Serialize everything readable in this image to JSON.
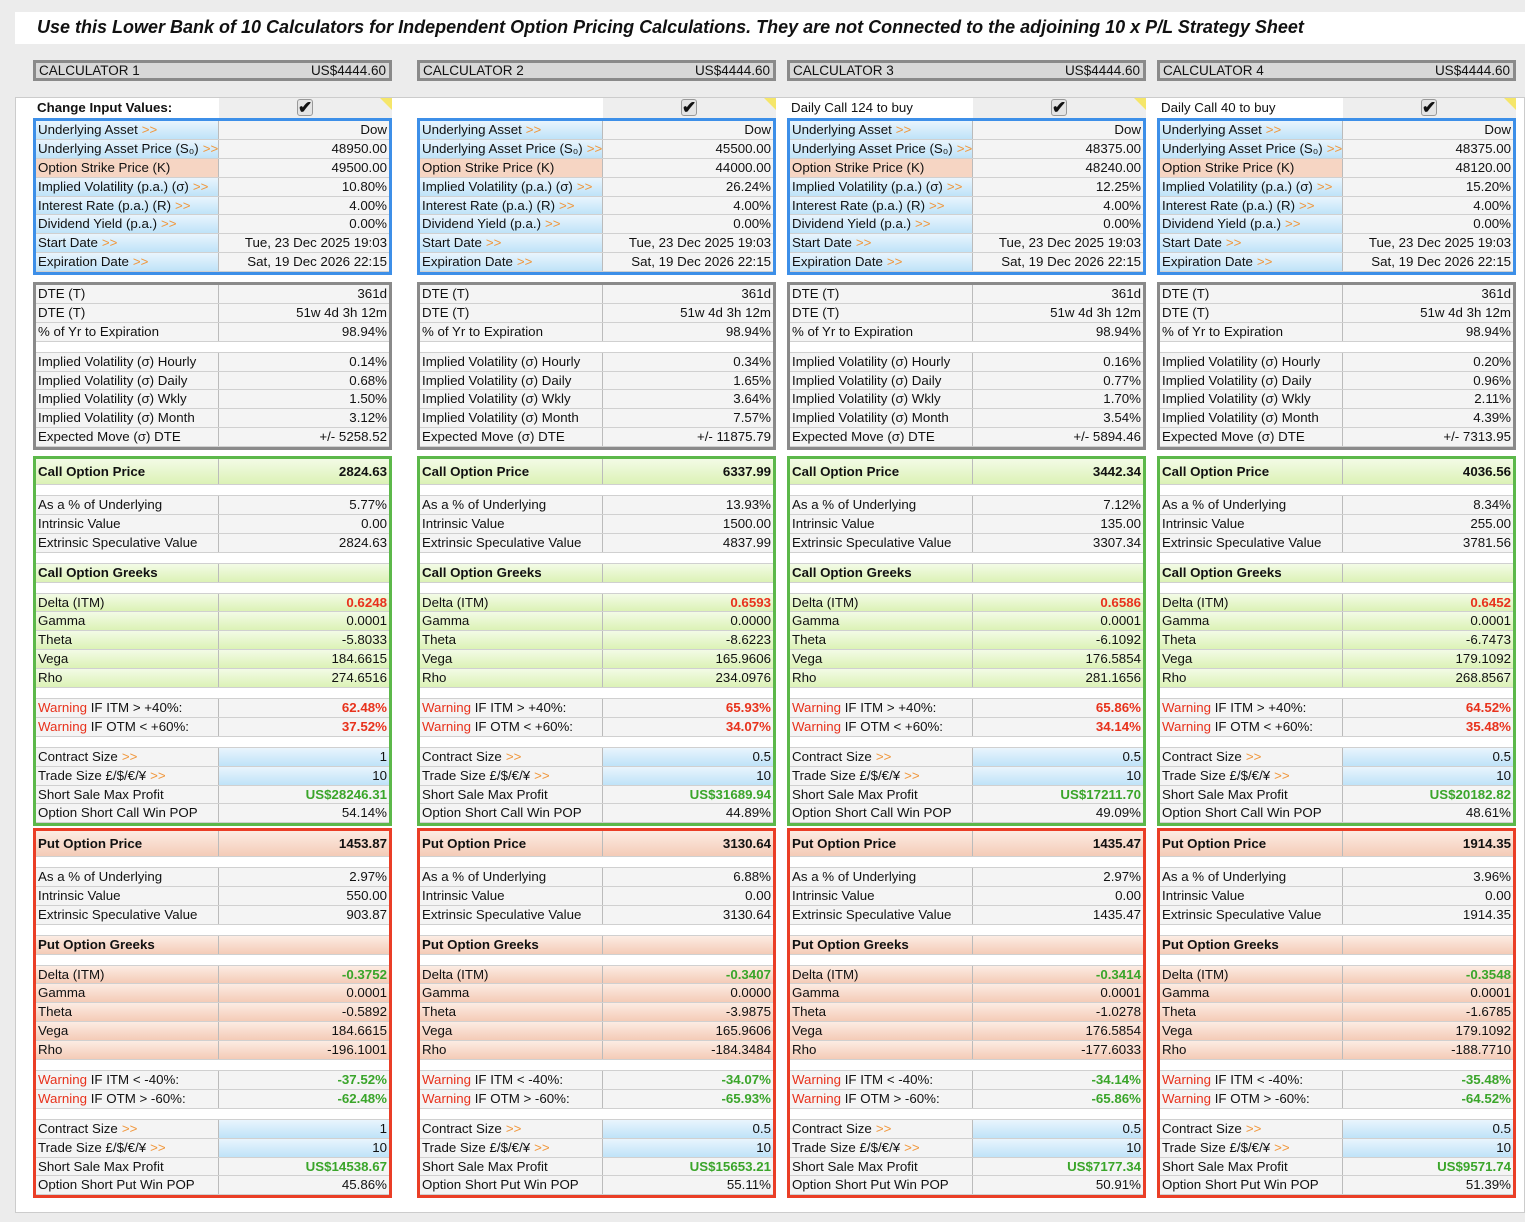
{
  "title": "Use this Lower Bank of 10 Calculators for Independent Option Pricing Calculations. They are not Connected to the adjoining 10 x P/L Strategy Sheet",
  "colors": {
    "input_border": "#3d8fe8",
    "stats_border": "#8a8a8a",
    "call_border": "#5cb84a",
    "put_border": "#ea3e26",
    "warning": "#e8321c",
    "positive": "#3aa52a",
    "arrow": "#f0963a"
  },
  "icons": {
    "checkbox": "checkmark-icon",
    "note": "cell-comment-indicator-icon"
  },
  "labels": {
    "arrow": ">>",
    "checkmark": "✔",
    "inputs": {
      "asset": "Underlying Asset",
      "price": "Underlying Asset Price (S₀)",
      "strike": "Option Strike Price (K)",
      "iv": "Implied Volatility (p.a.) (σ)",
      "rate": "Interest Rate (p.a.) (R)",
      "div": "Dividend Yield (p.a.)",
      "start": "Start Date",
      "expiry": "Expiration Date"
    },
    "stats": {
      "dte_days": "DTE (T)",
      "dte_full": "DTE (T)",
      "pct_year": "% of Yr to Expiration",
      "iv_hourly": "Implied Volatility (σ) Hourly",
      "iv_daily": "Implied Volatility (σ) Daily",
      "iv_weekly": "Implied Volatility (σ) Wkly",
      "iv_monthly": "Implied Volatility (σ) Month",
      "expected_move": "Expected Move (σ) DTE"
    },
    "call": {
      "price": "Call Option Price",
      "pct": "As a % of Underlying",
      "intrinsic": "Intrinsic Value",
      "extrinsic": "Extrinsic Speculative Value",
      "greeks": "Call Option Greeks",
      "delta": "Delta (ITM)",
      "gamma": "Gamma",
      "theta": "Theta",
      "vega": "Vega",
      "rho": "Rho",
      "warn_word": "Warning",
      "warn_itm": " IF ITM > +40%:",
      "warn_otm": " IF OTM < +60%:",
      "contract": "Contract Size",
      "trade": "Trade Size £/$/€/¥",
      "max_profit": "Short Sale Max Profit",
      "pop": "Option Short Call Win POP"
    },
    "put": {
      "price": "Put Option Price",
      "pct": "As a % of Underlying",
      "intrinsic": "Intrinsic Value",
      "extrinsic": "Extrinsic Speculative Value",
      "greeks": "Put Option Greeks",
      "delta": "Delta (ITM)",
      "gamma": "Gamma",
      "theta": "Theta",
      "vega": "Vega",
      "rho": "Rho",
      "warn_word": "Warning",
      "warn_itm": " IF ITM < -40%:",
      "warn_otm": " IF OTM > -60%:",
      "contract": "Contract Size",
      "trade": "Trade Size £/$/€/¥",
      "max_profit": "Short Sale Max Profit",
      "pop": "Option Short Put Win POP"
    }
  },
  "calculators": [
    {
      "name": "CALCULATOR 1",
      "total": "US$4444.60",
      "note": "Change Input Values:",
      "note_bold": true,
      "checked": true,
      "inputs": {
        "asset": "Dow",
        "price": "48950.00",
        "strike": "49500.00",
        "iv": "10.80%",
        "rate": "4.00%",
        "div": "0.00%",
        "start": "Tue, 23 Dec 2025 19:03",
        "expiry": "Sat, 19 Dec 2026 22:15"
      },
      "stats": {
        "dte_days": "361d",
        "dte_full": "51w 4d 3h 12m",
        "pct_year": "98.94%",
        "iv_hourly": "0.14%",
        "iv_daily": "0.68%",
        "iv_weekly": "1.50%",
        "iv_monthly": "3.12%",
        "expected_move": "+/- 5258.52"
      },
      "call": {
        "price": "2824.63",
        "pct": "5.77%",
        "intrinsic": "0.00",
        "extrinsic": "2824.63",
        "greeks": "",
        "delta": "0.6248",
        "gamma": "0.0001",
        "theta": "-5.8033",
        "vega": "184.6615",
        "rho": "274.6516",
        "warn_itm": "62.48%",
        "warn_otm": "37.52%",
        "contract": "1",
        "trade": "10",
        "max_profit": "US$28246.31",
        "pop": "54.14%"
      },
      "put": {
        "price": "1453.87",
        "pct": "2.97%",
        "intrinsic": "550.00",
        "extrinsic": "903.87",
        "greeks": "",
        "delta": "-0.3752",
        "gamma": "0.0001",
        "theta": "-0.5892",
        "vega": "184.6615",
        "rho": "-196.1001",
        "warn_itm": "-37.52%",
        "warn_otm": "-62.48%",
        "contract": "1",
        "trade": "10",
        "max_profit": "US$14538.67",
        "pop": "45.86%"
      }
    },
    {
      "name": "CALCULATOR 2",
      "total": "US$4444.60",
      "note": "",
      "note_bold": false,
      "checked": true,
      "inputs": {
        "asset": "Dow",
        "price": "45500.00",
        "strike": "44000.00",
        "iv": "26.24%",
        "rate": "4.00%",
        "div": "0.00%",
        "start": "Tue, 23 Dec 2025 19:03",
        "expiry": "Sat, 19 Dec 2026 22:15"
      },
      "stats": {
        "dte_days": "361d",
        "dte_full": "51w 4d 3h 12m",
        "pct_year": "98.94%",
        "iv_hourly": "0.34%",
        "iv_daily": "1.65%",
        "iv_weekly": "3.64%",
        "iv_monthly": "7.57%",
        "expected_move": "+/- 11875.79"
      },
      "call": {
        "price": "6337.99",
        "pct": "13.93%",
        "intrinsic": "1500.00",
        "extrinsic": "4837.99",
        "greeks": "",
        "delta": "0.6593",
        "gamma": "0.0000",
        "theta": "-8.6223",
        "vega": "165.9606",
        "rho": "234.0976",
        "warn_itm": "65.93%",
        "warn_otm": "34.07%",
        "contract": "0.5",
        "trade": "10",
        "max_profit": "US$31689.94",
        "pop": "44.89%"
      },
      "put": {
        "price": "3130.64",
        "pct": "6.88%",
        "intrinsic": "0.00",
        "extrinsic": "3130.64",
        "greeks": "",
        "delta": "-0.3407",
        "gamma": "0.0000",
        "theta": "-3.9875",
        "vega": "165.9606",
        "rho": "-184.3484",
        "warn_itm": "-34.07%",
        "warn_otm": "-65.93%",
        "contract": "0.5",
        "trade": "10",
        "max_profit": "US$15653.21",
        "pop": "55.11%"
      }
    },
    {
      "name": "CALCULATOR 3",
      "total": "US$4444.60",
      "note": "Daily Call 124 to buy",
      "note_bold": false,
      "checked": true,
      "inputs": {
        "asset": "Dow",
        "price": "48375.00",
        "strike": "48240.00",
        "iv": "12.25%",
        "rate": "4.00%",
        "div": "0.00%",
        "start": "Tue, 23 Dec 2025 19:03",
        "expiry": "Sat, 19 Dec 2026 22:15"
      },
      "stats": {
        "dte_days": "361d",
        "dte_full": "51w 4d 3h 12m",
        "pct_year": "98.94%",
        "iv_hourly": "0.16%",
        "iv_daily": "0.77%",
        "iv_weekly": "1.70%",
        "iv_monthly": "3.54%",
        "expected_move": "+/- 5894.46"
      },
      "call": {
        "price": "3442.34",
        "pct": "7.12%",
        "intrinsic": "135.00",
        "extrinsic": "3307.34",
        "greeks": "",
        "delta": "0.6586",
        "gamma": "0.0001",
        "theta": "-6.1092",
        "vega": "176.5854",
        "rho": "281.1656",
        "warn_itm": "65.86%",
        "warn_otm": "34.14%",
        "contract": "0.5",
        "trade": "10",
        "max_profit": "US$17211.70",
        "pop": "49.09%"
      },
      "put": {
        "price": "1435.47",
        "pct": "2.97%",
        "intrinsic": "0.00",
        "extrinsic": "1435.47",
        "greeks": "",
        "delta": "-0.3414",
        "gamma": "0.0001",
        "theta": "-1.0278",
        "vega": "176.5854",
        "rho": "-177.6033",
        "warn_itm": "-34.14%",
        "warn_otm": "-65.86%",
        "contract": "0.5",
        "trade": "10",
        "max_profit": "US$7177.34",
        "pop": "50.91%"
      }
    },
    {
      "name": "CALCULATOR 4",
      "total": "US$4444.60",
      "note": "Daily Call 40 to buy",
      "note_bold": false,
      "checked": true,
      "inputs": {
        "asset": "Dow",
        "price": "48375.00",
        "strike": "48120.00",
        "iv": "15.20%",
        "rate": "4.00%",
        "div": "0.00%",
        "start": "Tue, 23 Dec 2025 19:03",
        "expiry": "Sat, 19 Dec 2026 22:15"
      },
      "stats": {
        "dte_days": "361d",
        "dte_full": "51w 4d 3h 12m",
        "pct_year": "98.94%",
        "iv_hourly": "0.20%",
        "iv_daily": "0.96%",
        "iv_weekly": "2.11%",
        "iv_monthly": "4.39%",
        "expected_move": "+/- 7313.95"
      },
      "call": {
        "price": "4036.56",
        "pct": "8.34%",
        "intrinsic": "255.00",
        "extrinsic": "3781.56",
        "greeks": "",
        "delta": "0.6452",
        "gamma": "0.0001",
        "theta": "-6.7473",
        "vega": "179.1092",
        "rho": "268.8567",
        "warn_itm": "64.52%",
        "warn_otm": "35.48%",
        "contract": "0.5",
        "trade": "10",
        "max_profit": "US$20182.82",
        "pop": "48.61%"
      },
      "put": {
        "price": "1914.35",
        "pct": "3.96%",
        "intrinsic": "0.00",
        "extrinsic": "1914.35",
        "greeks": "",
        "delta": "-0.3548",
        "gamma": "0.0001",
        "theta": "-1.6785",
        "vega": "179.1092",
        "rho": "-188.7710",
        "warn_itm": "-35.48%",
        "warn_otm": "-64.52%",
        "contract": "0.5",
        "trade": "10",
        "max_profit": "US$9571.74",
        "pop": "51.39%"
      }
    }
  ]
}
